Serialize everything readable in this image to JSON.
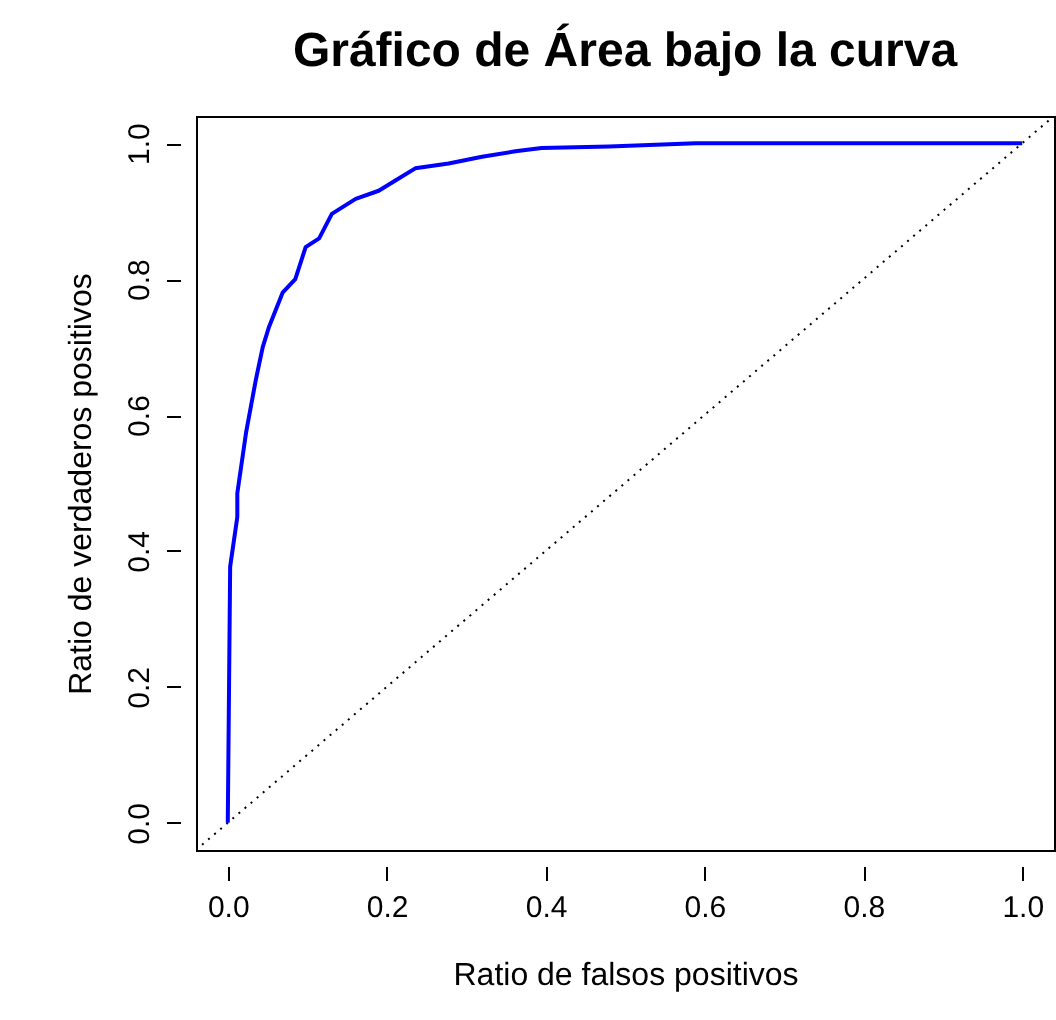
{
  "chart_data": {
    "type": "line",
    "title": "Gráfico de Área bajo la curva",
    "xlabel": "Ratio de falsos positivos",
    "ylabel": "Ratio de verdaderos positivos",
    "xlim": [
      -0.04,
      1.04
    ],
    "ylim": [
      -0.04,
      1.04
    ],
    "xticks": [
      {
        "value": 0,
        "label": "0.0"
      },
      0.2,
      0.4,
      0.6,
      0.8,
      {
        "value": 1,
        "label": "1.0"
      }
    ],
    "yticks": [
      {
        "value": 0,
        "label": "0.0"
      },
      0.2,
      0.4,
      0.6,
      0.8,
      {
        "value": 1,
        "label": "1.0"
      }
    ],
    "series": [
      {
        "color": "#0000ff",
        "line_style": "solid",
        "x": [
          0,
          0.003,
          0.012,
          0.012,
          0.023,
          0.035,
          0.044,
          0.052,
          0.069,
          0.085,
          0.098,
          0.115,
          0.131,
          0.161,
          0.19,
          0.211,
          0.236,
          0.278,
          0.32,
          0.362,
          0.395,
          0.48,
          0.589,
          1.0
        ],
        "values": [
          0,
          0.377,
          0.45,
          0.485,
          0.574,
          0.65,
          0.7,
          0.73,
          0.78,
          0.8,
          0.847,
          0.86,
          0.896,
          0.918,
          0.93,
          0.945,
          0.963,
          0.97,
          0.98,
          0.988,
          0.993,
          0.995,
          1.0,
          1.0
        ]
      },
      {
        "color": "#000000",
        "line_style": "dotted",
        "x": [
          -0.04,
          1.04
        ],
        "values": [
          -0.04,
          1.04
        ]
      }
    ]
  }
}
